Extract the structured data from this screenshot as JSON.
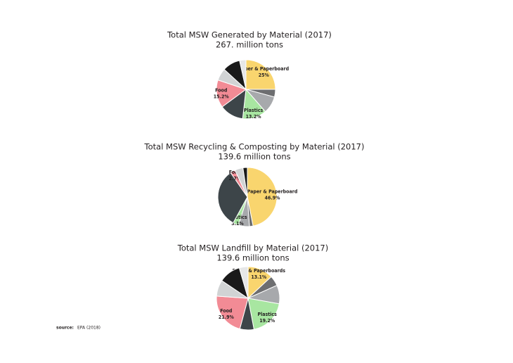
{
  "chart_data": [
    {
      "type": "pie",
      "title": "Total MSW Generated by Material (2017)",
      "subtitle": "267. million tons",
      "categories": [
        "Paper & Paperboard",
        null,
        null,
        "Plastics",
        null,
        "Food",
        null,
        null,
        null
      ],
      "values": [
        25,
        4.2,
        9.4,
        13.2,
        13.1,
        15.2,
        6.7,
        9.7,
        3.5
      ],
      "value_labels": [
        "25%",
        null,
        null,
        "13.2%",
        null,
        "15.2%",
        null,
        null,
        null
      ],
      "colors": [
        "#f9d56e",
        "#6d6e70",
        "#a7a9ac",
        "#a8e6a1",
        "#3d4549",
        "#f28b95",
        "#d1d3d4",
        "#1a1a1a",
        "#e6e7e8"
      ]
    },
    {
      "type": "pie",
      "title": "Total MSW Recycling & Composting by Material (2017)",
      "subtitle": "139.6 million tons",
      "categories": [
        "Paper & Paperboard",
        null,
        null,
        "Plastics",
        null,
        "Food",
        null,
        null
      ],
      "values": [
        46.9,
        2,
        6,
        3.1,
        32.4,
        2.7,
        4.5,
        2.4
      ],
      "value_labels": [
        "46.9%",
        null,
        null,
        "3.1%",
        null,
        "2.7%",
        null,
        null
      ],
      "colors": [
        "#f9d56e",
        "#6d6e70",
        "#a7a9ac",
        "#a8e6a1",
        "#3d4549",
        "#f28b95",
        "#d1d3d4",
        "#1a1a1a"
      ]
    },
    {
      "type": "pie",
      "title": "Total MSW Landfill by Material (2017)",
      "subtitle": "139.6 million tons",
      "categories": [
        "Paper & Paperboards",
        null,
        null,
        "Plastics",
        null,
        "Food",
        null,
        null,
        null
      ],
      "values": [
        13.1,
        5.2,
        9.5,
        19.2,
        7.2,
        21.9,
        8.3,
        11.1,
        4.5
      ],
      "value_labels": [
        "13.1%",
        null,
        null,
        "19.2%",
        null,
        "21.9%",
        null,
        null,
        null
      ],
      "colors": [
        "#f9d56e",
        "#6d6e70",
        "#a7a9ac",
        "#a8e6a1",
        "#3d4549",
        "#f28b95",
        "#d1d3d4",
        "#1a1a1a",
        "#e6e7e8"
      ]
    }
  ],
  "source": {
    "label": "source:",
    "text": "EPA (2018)"
  }
}
